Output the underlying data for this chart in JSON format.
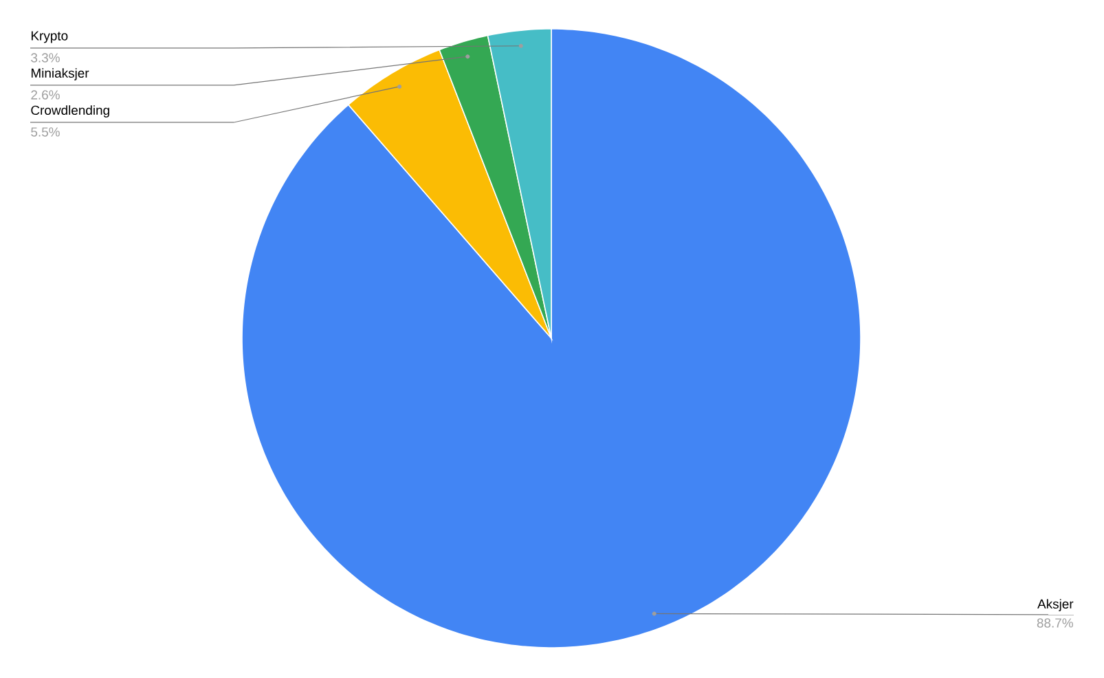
{
  "chart_data": {
    "type": "pie",
    "categories": [
      "Aksjer",
      "Crowdlending",
      "Miniaksjer",
      "Krypto"
    ],
    "values": [
      88.7,
      5.5,
      2.6,
      3.3
    ],
    "colors": [
      "#4285f4",
      "#fbbc04",
      "#34a853",
      "#46bdc6"
    ],
    "value_labels": [
      "88.7%",
      "5.5%",
      "2.6%",
      "3.3%"
    ]
  }
}
